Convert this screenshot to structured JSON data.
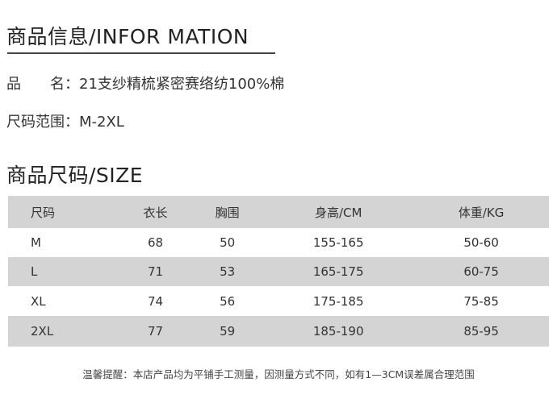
{
  "info_heading": "商品信息/INFOR MATION",
  "product_name_label": "品　　名：",
  "product_name": "21支纱精梳紧密赛络纺100%棉",
  "size_range_label": "尺码范围：",
  "size_range": "M-2XL",
  "size_heading": "商品尺码/SIZE",
  "table": {
    "headers": [
      "尺码",
      "衣长",
      "胸围",
      "身高/CM",
      "体重/KG"
    ],
    "rows": [
      [
        "M",
        "68",
        "50",
        "155-165",
        "50-60"
      ],
      [
        "L",
        "71",
        "53",
        "165-175",
        "60-75"
      ],
      [
        "XL",
        "74",
        "56",
        "175-185",
        "75-85"
      ],
      [
        "2XL",
        "77",
        "59",
        "185-190",
        "85-95"
      ]
    ]
  },
  "note": "温馨提醒：本店产品均为平铺手工测量，因测量方式不同，如有1—3CM误差属合理范围"
}
